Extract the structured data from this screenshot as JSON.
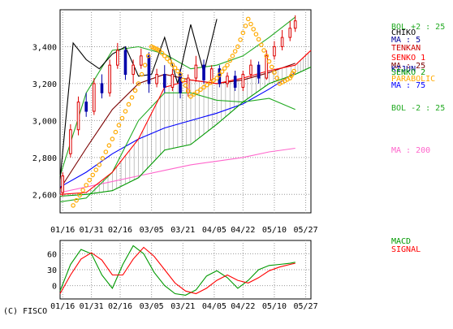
{
  "copyright": "(C) FISCO",
  "chart_data": [
    {
      "type": "line",
      "y_ticks": [
        2600,
        2800,
        3000,
        3200,
        3400
      ],
      "y_tick_labels": [
        "2,600",
        "2,800",
        "3,000",
        "3,200",
        "3,400"
      ],
      "x_tick_labels": [
        "01/16",
        "01/31",
        "02/16",
        "03/05",
        "03/21",
        "04/05",
        "04/22",
        "05/10",
        "05/27"
      ],
      "ylim": [
        2500,
        3600
      ],
      "grid": true,
      "legend": [
        {
          "label": "BOL +2 : 25",
          "color": "#22aa22"
        },
        {
          "label": "CHIKO",
          "color": "#000000"
        },
        {
          "label": "MA : 5",
          "color": "#000099"
        },
        {
          "label": "TENKAN",
          "color": "#cc0000"
        },
        {
          "label": "SENKO 1",
          "color": "#ff0000"
        },
        {
          "label": "MA : 25",
          "color": "#7a0000"
        },
        {
          "label": "KIJUN",
          "color": "#000099"
        },
        {
          "label": "SENKO 2",
          "color": "#009900"
        },
        {
          "label": "PARABOLIC",
          "color": "#ffaa00"
        },
        {
          "label": "MA : 75",
          "color": "#0000ff"
        },
        {
          "label": "BOL -2 : 25",
          "color": "#22aa22"
        },
        {
          "label": "MA : 200",
          "color": "#ff66cc"
        }
      ],
      "series": [
        {
          "name": "MA : 200",
          "x": [
            0,
            10,
            20,
            30,
            40,
            50,
            60,
            70,
            80,
            90
          ],
          "y": [
            2610,
            2640,
            2670,
            2700,
            2730,
            2760,
            2780,
            2800,
            2830,
            2850
          ]
        },
        {
          "name": "MA : 75",
          "x": [
            0,
            10,
            20,
            30,
            40,
            50,
            60,
            70,
            80,
            90
          ],
          "y": [
            2640,
            2720,
            2820,
            2900,
            2960,
            3000,
            3040,
            3090,
            3170,
            3260
          ]
        },
        {
          "name": "MA : 25",
          "x": [
            0,
            10,
            20,
            30,
            40,
            50,
            60,
            70,
            80,
            90
          ],
          "y": [
            2630,
            2850,
            3060,
            3200,
            3250,
            3220,
            3200,
            3220,
            3260,
            3310
          ]
        },
        {
          "name": "BOL +2 : 25",
          "x": [
            0,
            10,
            20,
            30,
            40,
            50,
            60,
            70,
            80,
            90
          ],
          "y": [
            2700,
            3150,
            3380,
            3400,
            3360,
            3280,
            3300,
            3350,
            3450,
            3560
          ]
        },
        {
          "name": "BOL -2 : 25",
          "x": [
            0,
            10,
            20,
            30,
            40,
            50,
            60,
            70,
            80,
            90
          ],
          "y": [
            2560,
            2580,
            2720,
            3000,
            3150,
            3150,
            3110,
            3100,
            3120,
            3060
          ]
        },
        {
          "name": "CHIKO",
          "x": [
            0,
            5,
            10,
            15,
            20,
            25,
            30,
            35,
            40,
            45,
            50,
            55,
            60
          ],
          "y": [
            2680,
            3420,
            3330,
            3280,
            3360,
            3400,
            3240,
            3250,
            3450,
            3200,
            3520,
            3260,
            3550
          ]
        },
        {
          "name": "SENKO 1",
          "x": [
            0,
            10,
            20,
            30,
            40,
            50,
            60,
            70,
            80,
            90,
            96
          ],
          "y": [
            2600,
            2610,
            2720,
            2900,
            3180,
            3220,
            3200,
            3230,
            3270,
            3300,
            3380
          ]
        },
        {
          "name": "SENKO 2",
          "x": [
            0,
            10,
            20,
            30,
            40,
            50,
            60,
            70,
            80,
            90,
            96
          ],
          "y": [
            2590,
            2600,
            2620,
            2690,
            2840,
            2870,
            2980,
            3100,
            3200,
            3250,
            3290
          ]
        },
        {
          "name": "PARABOLIC",
          "x": [
            5,
            10,
            15,
            20,
            25,
            30,
            35,
            38,
            42,
            46,
            50,
            55,
            60,
            64,
            68,
            72,
            76,
            80,
            84,
            88,
            90
          ],
          "y": [
            2540,
            2650,
            2760,
            2900,
            3050,
            3200,
            3400,
            3380,
            3320,
            3250,
            3130,
            3180,
            3230,
            3300,
            3400,
            3550,
            3440,
            3320,
            3200,
            3230,
            3280
          ]
        }
      ],
      "candles": [
        {
          "x": 1,
          "o": 2610,
          "c": 2700,
          "h": 2720,
          "l": 2590
        },
        {
          "x": 4,
          "o": 2820,
          "c": 2950,
          "h": 2980,
          "l": 2800
        },
        {
          "x": 7,
          "o": 2950,
          "c": 3100,
          "h": 3130,
          "l": 2920
        },
        {
          "x": 10,
          "o": 3100,
          "c": 3050,
          "h": 3150,
          "l": 3020
        },
        {
          "x": 13,
          "o": 3050,
          "c": 3200,
          "h": 3230,
          "l": 3030
        },
        {
          "x": 16,
          "o": 3200,
          "c": 3150,
          "h": 3250,
          "l": 3120
        },
        {
          "x": 19,
          "o": 3150,
          "c": 3300,
          "h": 3330,
          "l": 3130
        },
        {
          "x": 22,
          "o": 3300,
          "c": 3380,
          "h": 3420,
          "l": 3280
        },
        {
          "x": 25,
          "o": 3380,
          "c": 3250,
          "h": 3400,
          "l": 3220
        },
        {
          "x": 28,
          "o": 3250,
          "c": 3300,
          "h": 3330,
          "l": 3200
        },
        {
          "x": 31,
          "o": 3300,
          "c": 3350,
          "h": 3390,
          "l": 3280
        },
        {
          "x": 34,
          "o": 3350,
          "c": 3200,
          "h": 3370,
          "l": 3150
        },
        {
          "x": 37,
          "o": 3200,
          "c": 3250,
          "h": 3280,
          "l": 3180
        },
        {
          "x": 40,
          "o": 3250,
          "c": 3180,
          "h": 3300,
          "l": 3150
        },
        {
          "x": 43,
          "o": 3180,
          "c": 3250,
          "h": 3280,
          "l": 3160
        },
        {
          "x": 46,
          "o": 3250,
          "c": 3150,
          "h": 3280,
          "l": 3120
        },
        {
          "x": 49,
          "o": 3150,
          "c": 3230,
          "h": 3250,
          "l": 3130
        },
        {
          "x": 52,
          "o": 3230,
          "c": 3300,
          "h": 3350,
          "l": 3210
        },
        {
          "x": 55,
          "o": 3300,
          "c": 3220,
          "h": 3330,
          "l": 3200
        },
        {
          "x": 58,
          "o": 3220,
          "c": 3280,
          "h": 3300,
          "l": 3200
        },
        {
          "x": 61,
          "o": 3280,
          "c": 3200,
          "h": 3300,
          "l": 3180
        },
        {
          "x": 64,
          "o": 3200,
          "c": 3240,
          "h": 3260,
          "l": 3180
        },
        {
          "x": 67,
          "o": 3240,
          "c": 3180,
          "h": 3270,
          "l": 3160
        },
        {
          "x": 70,
          "o": 3180,
          "c": 3250,
          "h": 3270,
          "l": 3160
        },
        {
          "x": 73,
          "o": 3250,
          "c": 3300,
          "h": 3330,
          "l": 3230
        },
        {
          "x": 76,
          "o": 3300,
          "c": 3230,
          "h": 3320,
          "l": 3200
        },
        {
          "x": 79,
          "o": 3230,
          "c": 3350,
          "h": 3380,
          "l": 3220
        },
        {
          "x": 82,
          "o": 3350,
          "c": 3400,
          "h": 3430,
          "l": 3330
        },
        {
          "x": 85,
          "o": 3400,
          "c": 3450,
          "h": 3490,
          "l": 3380
        },
        {
          "x": 88,
          "o": 3450,
          "c": 3500,
          "h": 3540,
          "l": 3430
        },
        {
          "x": 90,
          "o": 3500,
          "c": 3540,
          "h": 3570,
          "l": 3480
        }
      ]
    },
    {
      "type": "line",
      "y_ticks": [
        0,
        30,
        60
      ],
      "y_tick_labels": [
        "0",
        "30",
        "60"
      ],
      "x_tick_labels": [
        "01/16",
        "01/31",
        "02/16",
        "03/05",
        "03/21",
        "04/05",
        "04/22",
        "05/10",
        "05/27"
      ],
      "ylim": [
        -25,
        85
      ],
      "grid": true,
      "legend": [
        {
          "label": "MACD",
          "color": "#009900"
        },
        {
          "label": "SIGNAL",
          "color": "#ff0000"
        }
      ],
      "series": [
        {
          "name": "MACD",
          "x": [
            0,
            4,
            8,
            12,
            16,
            20,
            24,
            28,
            32,
            36,
            40,
            44,
            48,
            52,
            56,
            60,
            64,
            68,
            72,
            76,
            80,
            84,
            88,
            90
          ],
          "y": [
            -10,
            40,
            68,
            60,
            20,
            -5,
            40,
            75,
            60,
            25,
            0,
            -15,
            -18,
            -8,
            18,
            28,
            15,
            -5,
            10,
            30,
            38,
            40,
            42,
            44
          ]
        },
        {
          "name": "SIGNAL",
          "x": [
            0,
            4,
            8,
            12,
            16,
            20,
            24,
            28,
            32,
            36,
            40,
            44,
            48,
            52,
            56,
            60,
            64,
            68,
            72,
            76,
            80,
            84,
            88,
            90
          ],
          "y": [
            -15,
            20,
            50,
            62,
            48,
            20,
            20,
            50,
            72,
            55,
            30,
            5,
            -10,
            -15,
            -5,
            10,
            20,
            10,
            5,
            15,
            28,
            35,
            40,
            42
          ]
        }
      ]
    }
  ]
}
